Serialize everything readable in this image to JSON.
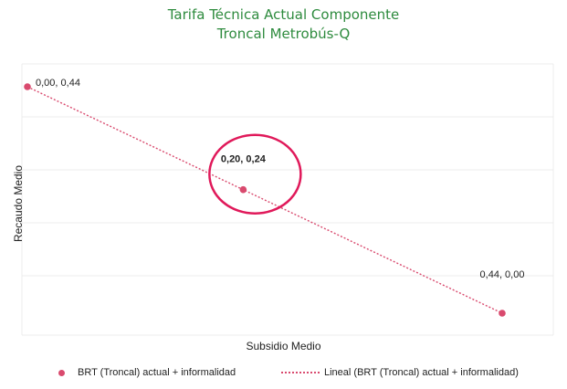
{
  "chart_data": {
    "type": "scatter",
    "title": [
      "Tarifa Técnica Actual Componente",
      "Troncal Metrobús-Q"
    ],
    "xlabel": "Subsidio Medio",
    "ylabel": "Recaudo Medio",
    "xlim": [
      0,
      0.44
    ],
    "ylim": [
      0,
      0.44
    ],
    "grid": true,
    "legend_position": "bottom",
    "series": [
      {
        "name": "BRT (Troncal)  actual + informalidad",
        "kind": "scatter",
        "color": "#d94a6e",
        "points": [
          {
            "x": 0.0,
            "y": 0.44,
            "label": "0,00, 0,44"
          },
          {
            "x": 0.2,
            "y": 0.24,
            "label": "0,20, 0,24"
          },
          {
            "x": 0.44,
            "y": 0.0,
            "label": "0,44, 0,00"
          }
        ]
      },
      {
        "name": "Lineal (BRT (Troncal)  actual + informalidad)",
        "kind": "trendline",
        "color": "#d94a6e",
        "style": "dotted",
        "from": {
          "x": 0.0,
          "y": 0.44
        },
        "to": {
          "x": 0.44,
          "y": 0.0
        }
      }
    ],
    "annotation": {
      "type": "ellipse",
      "around_point": 1,
      "color": "#e0195a"
    }
  }
}
